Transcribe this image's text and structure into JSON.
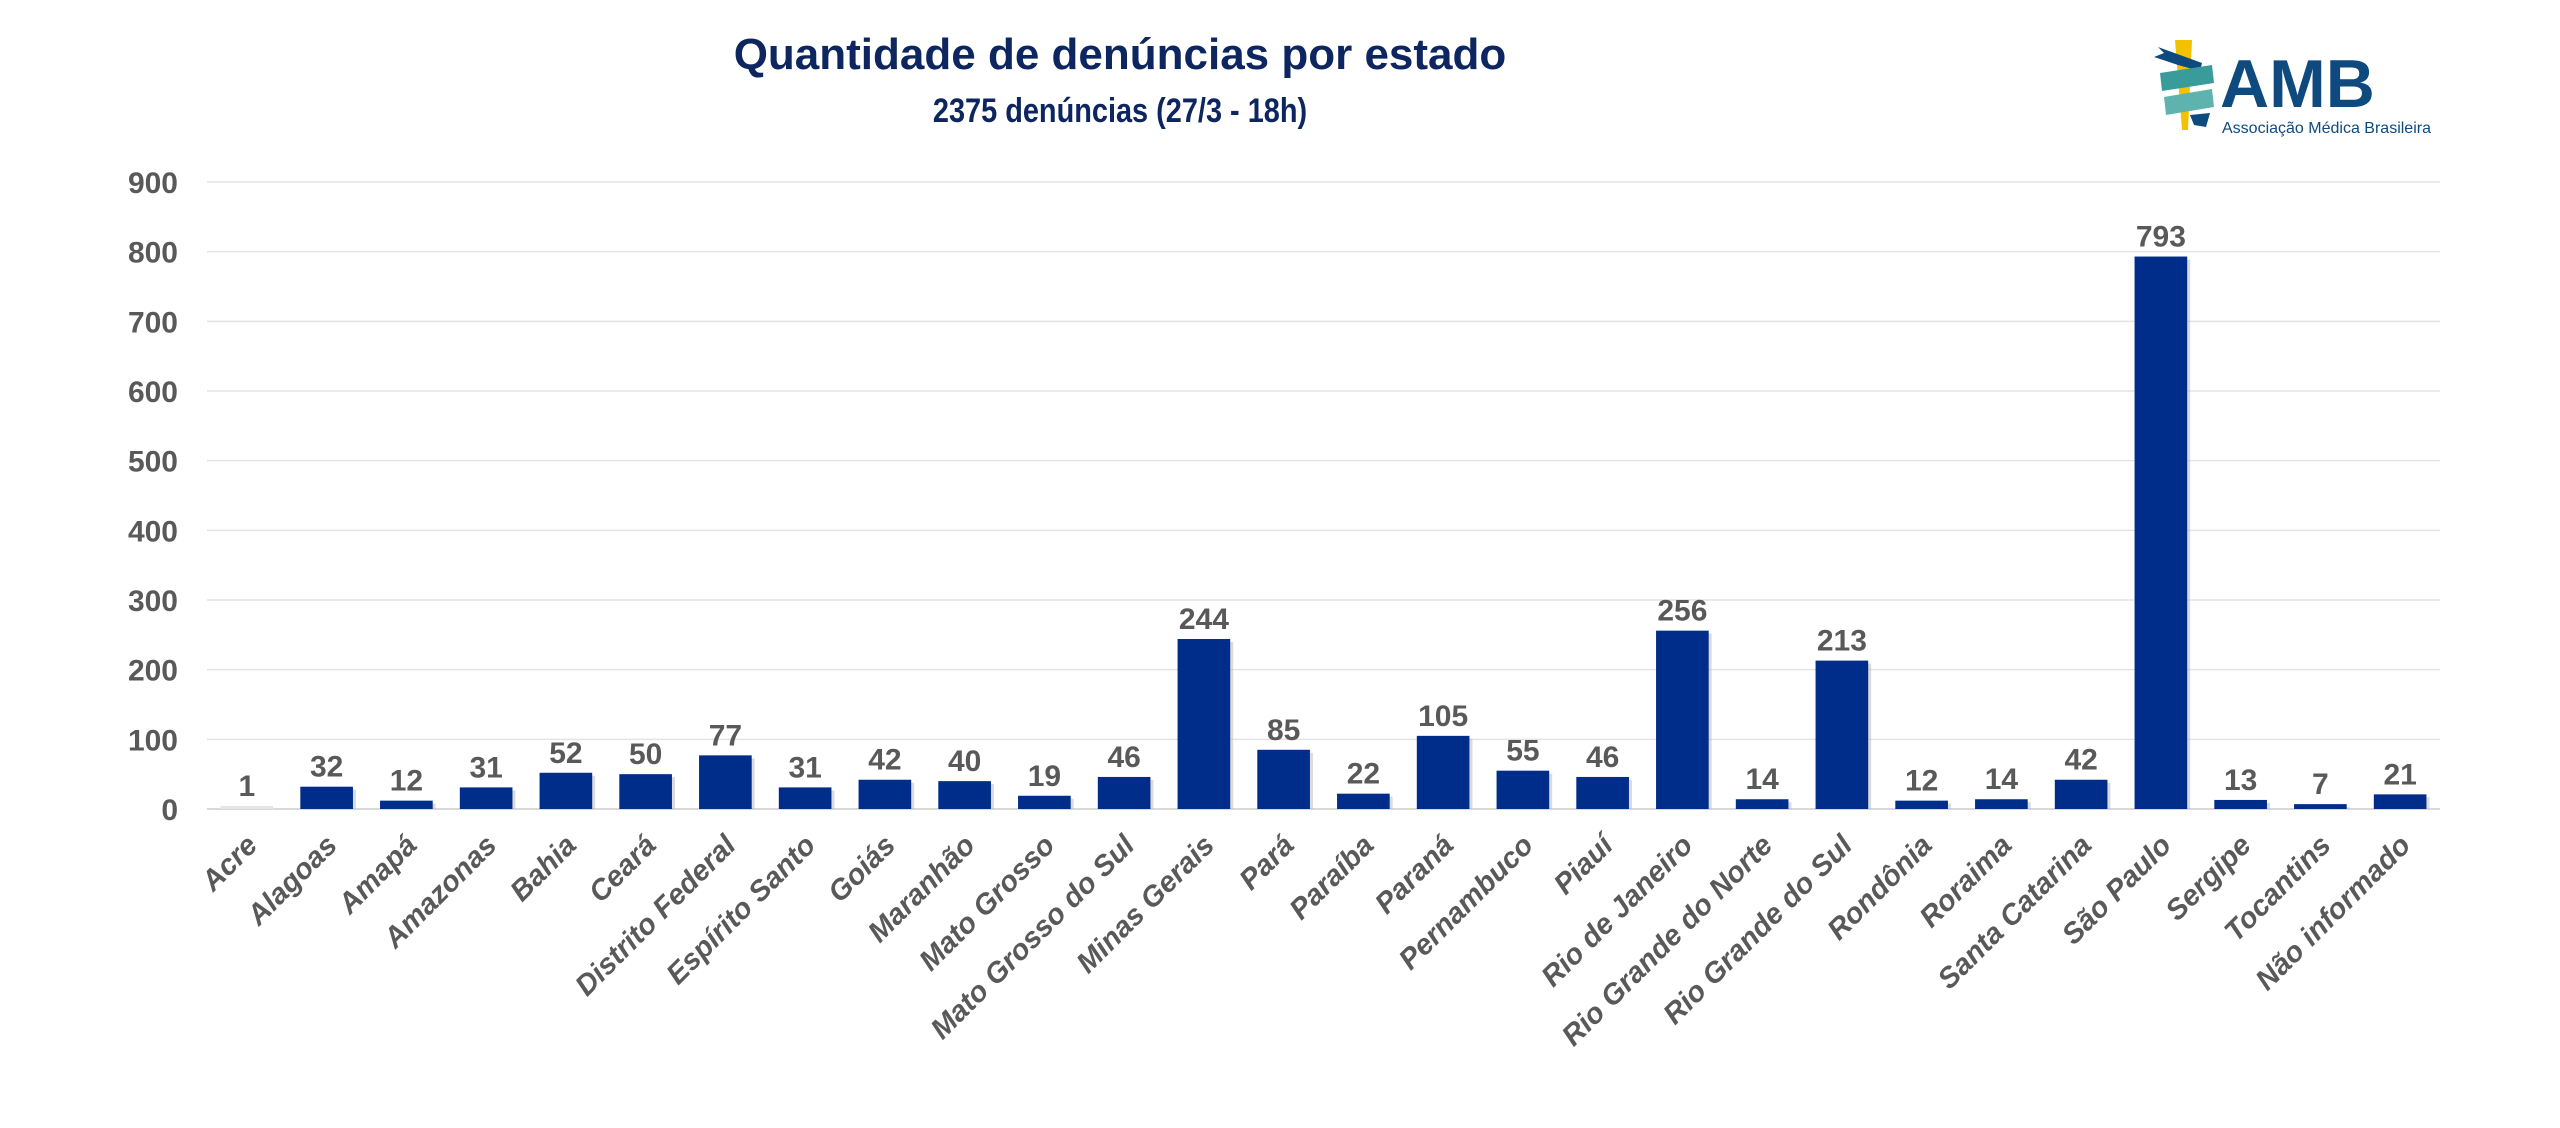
{
  "header": {
    "title": "Quantidade de denúncias por estado",
    "subtitle": "2375 denúncias (27/3 - 18h)"
  },
  "logo": {
    "name": "AMB",
    "tagline": "Associação Médica Brasileira",
    "icon": "caduceus-ribbon-icon"
  },
  "colors": {
    "bar": "#002D89",
    "title": "#0D2660",
    "text": "#595959",
    "grid": "#E4E4E4",
    "logo_blue": "#0E4A7E",
    "logo_teal": "#3A9B9B",
    "logo_yellow": "#F2C200"
  },
  "chart_data": {
    "type": "bar",
    "title": "Quantidade de denúncias por estado",
    "subtitle": "2375 denúncias (27/3 - 18h)",
    "xlabel": "",
    "ylabel": "",
    "ylim": [
      0,
      900
    ],
    "yticks": [
      0,
      100,
      200,
      300,
      400,
      500,
      600,
      700,
      800,
      900
    ],
    "grid": true,
    "legend": "none",
    "categories": [
      "Acre",
      "Alagoas",
      "Amapá",
      "Amazonas",
      "Bahia",
      "Ceará",
      "Distrito Federal",
      "Espírito Santo",
      "Goiás",
      "Maranhão",
      "Mato Grosso",
      "Mato Grosso do Sul",
      "Minas Gerais",
      "Pará",
      "Paraíba",
      "Paraná",
      "Pernambuco",
      "Piauí",
      "Rio de Janeiro",
      "Rio Grande do Norte",
      "Rio Grande do Sul",
      "Rondônia",
      "Roraima",
      "Santa Catarina",
      "São Paulo",
      "Sergipe",
      "Tocantins",
      "Não informado"
    ],
    "values": [
      1,
      32,
      12,
      31,
      52,
      50,
      77,
      31,
      42,
      40,
      19,
      46,
      244,
      85,
      22,
      105,
      55,
      46,
      256,
      14,
      213,
      12,
      14,
      42,
      793,
      13,
      7,
      21
    ]
  }
}
